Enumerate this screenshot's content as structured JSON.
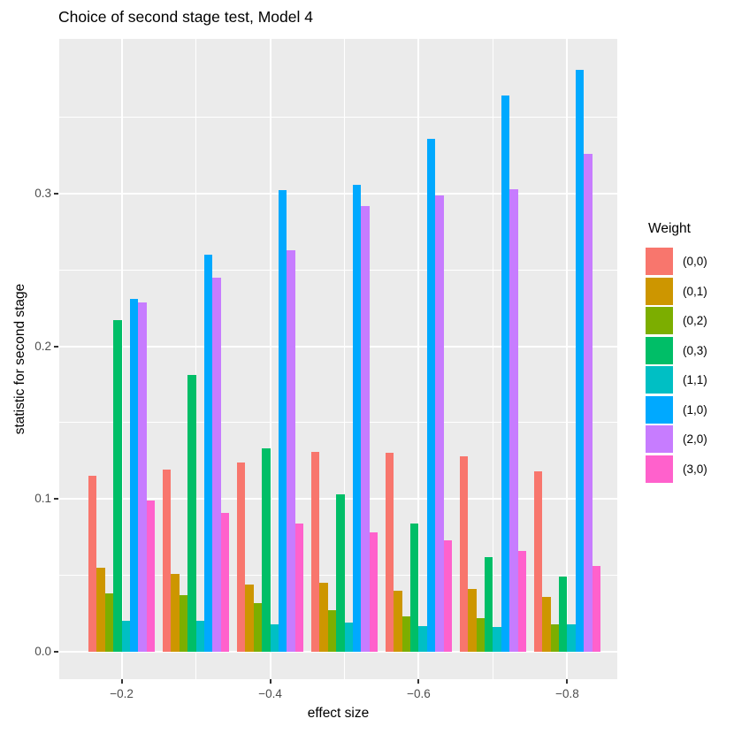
{
  "chart_data": {
    "type": "bar",
    "title": "Choice of second stage test, Model 4",
    "xlabel": "effect size",
    "ylabel": "statistic for second stage",
    "legend_title": "Weight",
    "legend_position": "right",
    "grid": true,
    "categories": [
      -0.2,
      -0.3,
      -0.4,
      -0.5,
      -0.6,
      -0.7,
      -0.8
    ],
    "series": [
      {
        "name": "(0,0)",
        "color": "#F8766D",
        "values": [
          0.115,
          0.119,
          0.124,
          0.131,
          0.13,
          0.128,
          0.118
        ]
      },
      {
        "name": "(0,1)",
        "color": "#CD9600",
        "values": [
          0.055,
          0.051,
          0.044,
          0.045,
          0.04,
          0.041,
          0.036
        ]
      },
      {
        "name": "(0,2)",
        "color": "#7CAE00",
        "values": [
          0.038,
          0.037,
          0.032,
          0.027,
          0.023,
          0.022,
          0.018
        ]
      },
      {
        "name": "(0,3)",
        "color": "#00BE67",
        "values": [
          0.217,
          0.181,
          0.133,
          0.103,
          0.084,
          0.062,
          0.049
        ]
      },
      {
        "name": "(1,1)",
        "color": "#00BFC4",
        "values": [
          0.02,
          0.02,
          0.018,
          0.019,
          0.017,
          0.016,
          0.018
        ]
      },
      {
        "name": "(1,0)",
        "color": "#00A9FF",
        "values": [
          0.231,
          0.26,
          0.302,
          0.306,
          0.336,
          0.364,
          0.381
        ]
      },
      {
        "name": "(2,0)",
        "color": "#C77CFF",
        "values": [
          0.229,
          0.245,
          0.263,
          0.292,
          0.299,
          0.303,
          0.326
        ]
      },
      {
        "name": "(3,0)",
        "color": "#FF61CC",
        "values": [
          0.099,
          0.091,
          0.084,
          0.078,
          0.073,
          0.066,
          0.056
        ]
      }
    ],
    "xticks": [
      {
        "label": "−0.2",
        "value": -0.2
      },
      {
        "label": "−0.4",
        "value": -0.4
      },
      {
        "label": "−0.6",
        "value": -0.6
      },
      {
        "label": "−0.8",
        "value": -0.8
      }
    ],
    "yticks": [
      {
        "label": "0.0",
        "value": 0.0
      },
      {
        "label": "0.1",
        "value": 0.1
      },
      {
        "label": "0.2",
        "value": 0.2
      },
      {
        "label": "0.3",
        "value": 0.3
      }
    ],
    "ylim": [
      -0.018,
      0.401
    ],
    "colors": {
      "panel_bg": "#EBEBEB",
      "grid": "#FFFFFF",
      "tick_text": "#4D4D4D",
      "tick_mark": "#333333",
      "text": "#000000"
    }
  }
}
